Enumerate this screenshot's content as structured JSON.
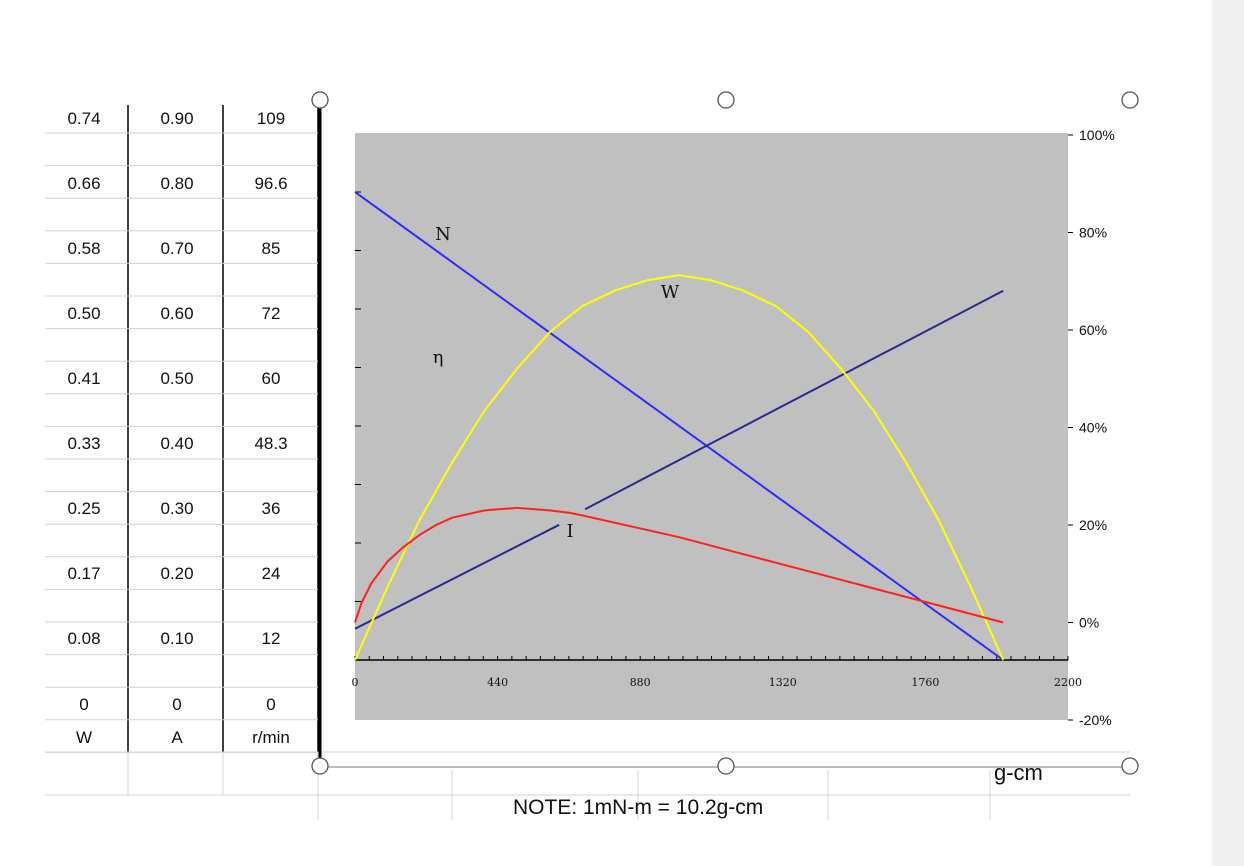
{
  "table": {
    "rows": [
      [
        "0.74",
        "0.90",
        "109"
      ],
      [
        "0.66",
        "0.80",
        "96.6"
      ],
      [
        "0.58",
        "0.70",
        "85"
      ],
      [
        "0.50",
        "0.60",
        "72"
      ],
      [
        "0.41",
        "0.50",
        "60"
      ],
      [
        "0.33",
        "0.40",
        "48.3"
      ],
      [
        "0.25",
        "0.30",
        "36"
      ],
      [
        "0.17",
        "0.20",
        "24"
      ],
      [
        "0.08",
        "0.10",
        "12"
      ],
      [
        "0",
        "0",
        "0"
      ]
    ],
    "units": [
      "W",
      "A",
      "r/min"
    ]
  },
  "note": "NOTE: 1mN-m = 10.2g-cm",
  "x_unit": "g-cm",
  "colors": {
    "plot_bg": "#c0c0c0",
    "speed": "#2b2bff",
    "current": "#2a2a8c",
    "power": "#ffff00",
    "efficiency": "#ff2020"
  },
  "chart_data": {
    "type": "line",
    "x_ticks": [
      "0",
      "440",
      "880",
      "1320",
      "1760",
      "2200"
    ],
    "xlim": [
      0,
      2200
    ],
    "right_ticks": [
      "100%",
      "80%",
      "60%",
      "40%",
      "20%",
      "0%",
      "-20%"
    ],
    "right_ylim": [
      -20,
      100
    ],
    "left_ylim": [
      0,
      0.9
    ],
    "series": [
      {
        "name": "N",
        "axis": "left",
        "x": [
          0,
          2000
        ],
        "y": [
          0.9,
          0
        ]
      },
      {
        "name": "I",
        "axis": "left",
        "x": [
          0,
          630,
          710,
          2000
        ],
        "y": [
          0.06,
          0.26,
          0.29,
          0.71
        ]
      },
      {
        "name": "W",
        "axis": "left",
        "x": [
          0,
          100,
          200,
          300,
          400,
          500,
          600,
          700,
          800,
          900,
          1000,
          1100,
          1200,
          1300,
          1400,
          1500,
          1600,
          1700,
          1800,
          1900,
          2000
        ],
        "y": [
          0,
          0.14,
          0.27,
          0.38,
          0.48,
          0.56,
          0.63,
          0.68,
          0.71,
          0.73,
          0.74,
          0.73,
          0.71,
          0.68,
          0.63,
          0.56,
          0.48,
          0.38,
          0.27,
          0.14,
          0
        ]
      },
      {
        "name": "η",
        "axis": "right",
        "x": [
          0,
          20,
          50,
          100,
          150,
          200,
          250,
          300,
          400,
          500,
          600,
          660,
          700,
          800,
          1000,
          1200,
          1400,
          1600,
          1800,
          2000
        ],
        "y": [
          0,
          4,
          8,
          12.5,
          15.5,
          18,
          20,
          21.5,
          23,
          23.5,
          23,
          22.5,
          22,
          20.5,
          17.5,
          14,
          10.5,
          7,
          3.5,
          0
        ]
      }
    ]
  }
}
